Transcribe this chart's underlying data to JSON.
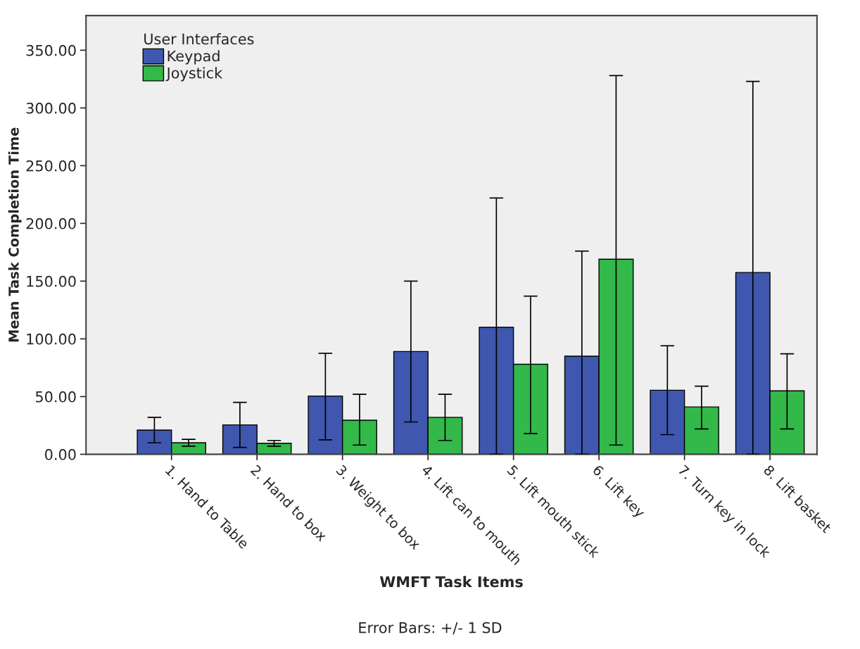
{
  "chart_data": {
    "type": "bar",
    "xlabel": "WMFT Task Items",
    "ylabel": "Mean Task Completion Time",
    "legend_title": "User Interfaces",
    "categories": [
      "1. Hand to Table",
      "2. Hand to box",
      "3. Weight to box",
      "4. Lift can to mouth",
      "5. Lift mouth stick",
      "6. Lift key",
      "7. Turn key in lock",
      "8. Lift basket"
    ],
    "series": [
      {
        "name": "Keypad",
        "color": "#3f57ae",
        "values": [
          21,
          25.5,
          50.5,
          89,
          110,
          85,
          55.5,
          157.5
        ],
        "errors": [
          [
            10,
            32
          ],
          [
            6,
            45
          ],
          [
            12.5,
            87.5
          ],
          [
            28,
            150
          ],
          [
            0,
            222
          ],
          [
            0,
            176
          ],
          [
            17,
            94
          ],
          [
            0,
            323
          ]
        ]
      },
      {
        "name": "Joystick",
        "color": "#33b84a",
        "values": [
          10,
          9.5,
          29.5,
          32,
          78,
          169,
          41,
          55
        ],
        "errors": [
          [
            7,
            13
          ],
          [
            7,
            12
          ],
          [
            8,
            52
          ],
          [
            12,
            52
          ],
          [
            18,
            137
          ],
          [
            8,
            328
          ],
          [
            22,
            59
          ],
          [
            22,
            87
          ]
        ]
      }
    ],
    "ylim": [
      0,
      380
    ],
    "yticks": [
      {
        "value": 0,
        "label": "0.00"
      },
      {
        "value": 50,
        "label": "50.00"
      },
      {
        "value": 100,
        "label": "100.00"
      },
      {
        "value": 150,
        "label": "150.00"
      },
      {
        "value": 200,
        "label": "200.00"
      },
      {
        "value": 250,
        "label": "250.00"
      },
      {
        "value": 300,
        "label": "300.00"
      },
      {
        "value": 350,
        "label": "350.00"
      }
    ],
    "grid": false,
    "legend": "top left",
    "annotations": [
      "Error Bars: +/- 1 SD"
    ]
  }
}
